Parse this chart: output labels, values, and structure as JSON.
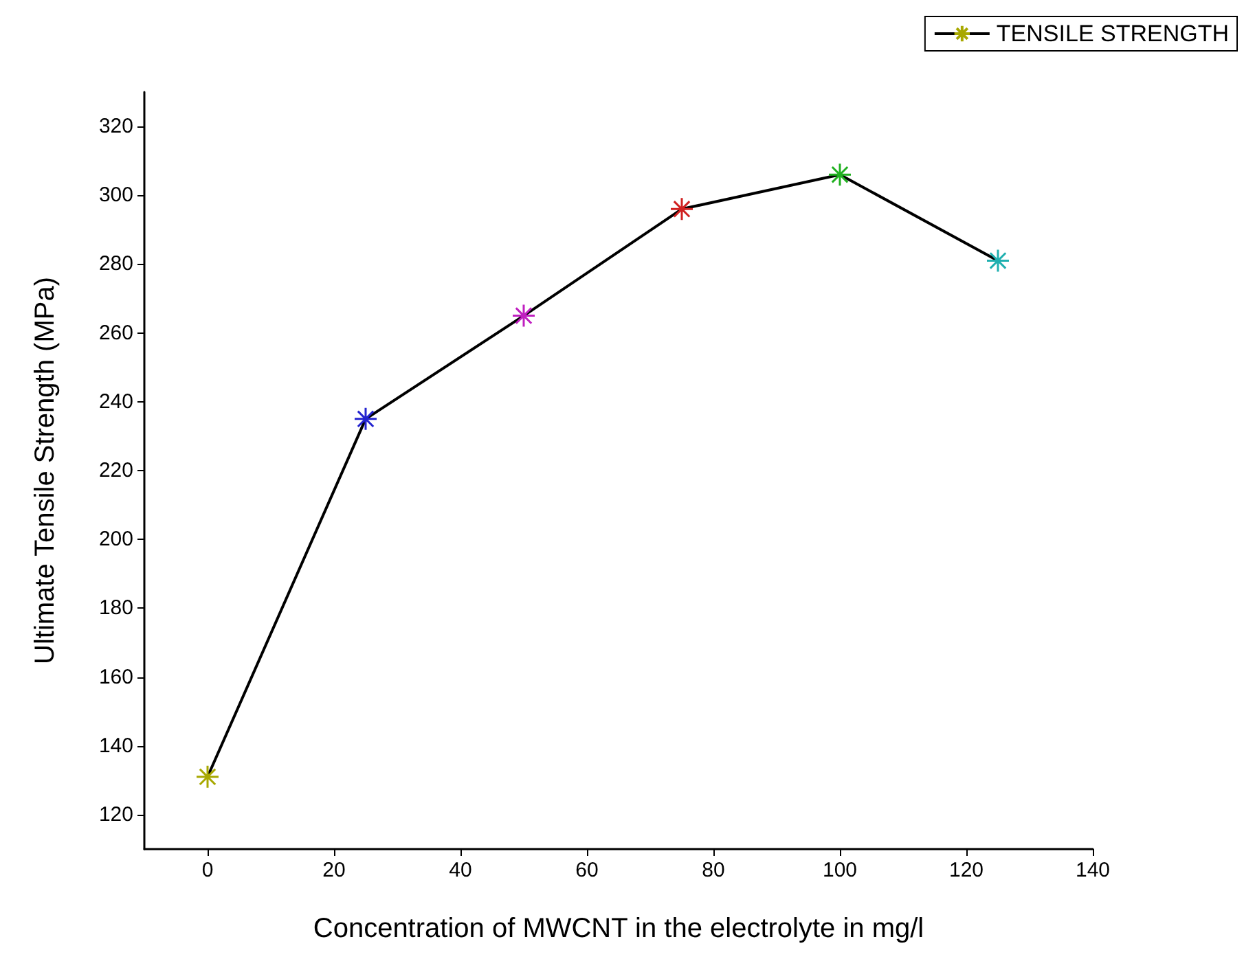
{
  "chart_data": {
    "type": "line",
    "xlabel": "Concentration of MWCNT in the electrolyte in mg/l",
    "ylabel": "Ultimate Tensile Strength (MPa)",
    "x": [
      0,
      25,
      50,
      75,
      100,
      125
    ],
    "series": [
      {
        "name": "TENSILE STRENGTH",
        "color": "#000000",
        "colors": [
          "#a8a800",
          "#2424d0",
          "#c020c0",
          "#d02020",
          "#20b020",
          "#20b0b0"
        ],
        "values": [
          131,
          235,
          265,
          296,
          306,
          281
        ]
      }
    ],
    "xlim": [
      -10,
      140
    ],
    "xticks": [
      0,
      20,
      40,
      60,
      80,
      100,
      120,
      140
    ],
    "ylim": [
      110,
      330
    ],
    "yticks": [
      120,
      140,
      160,
      180,
      200,
      220,
      240,
      260,
      280,
      300,
      320
    ],
    "grid": false,
    "legend": "top right",
    "marker": "cross",
    "line_style": "solid"
  }
}
